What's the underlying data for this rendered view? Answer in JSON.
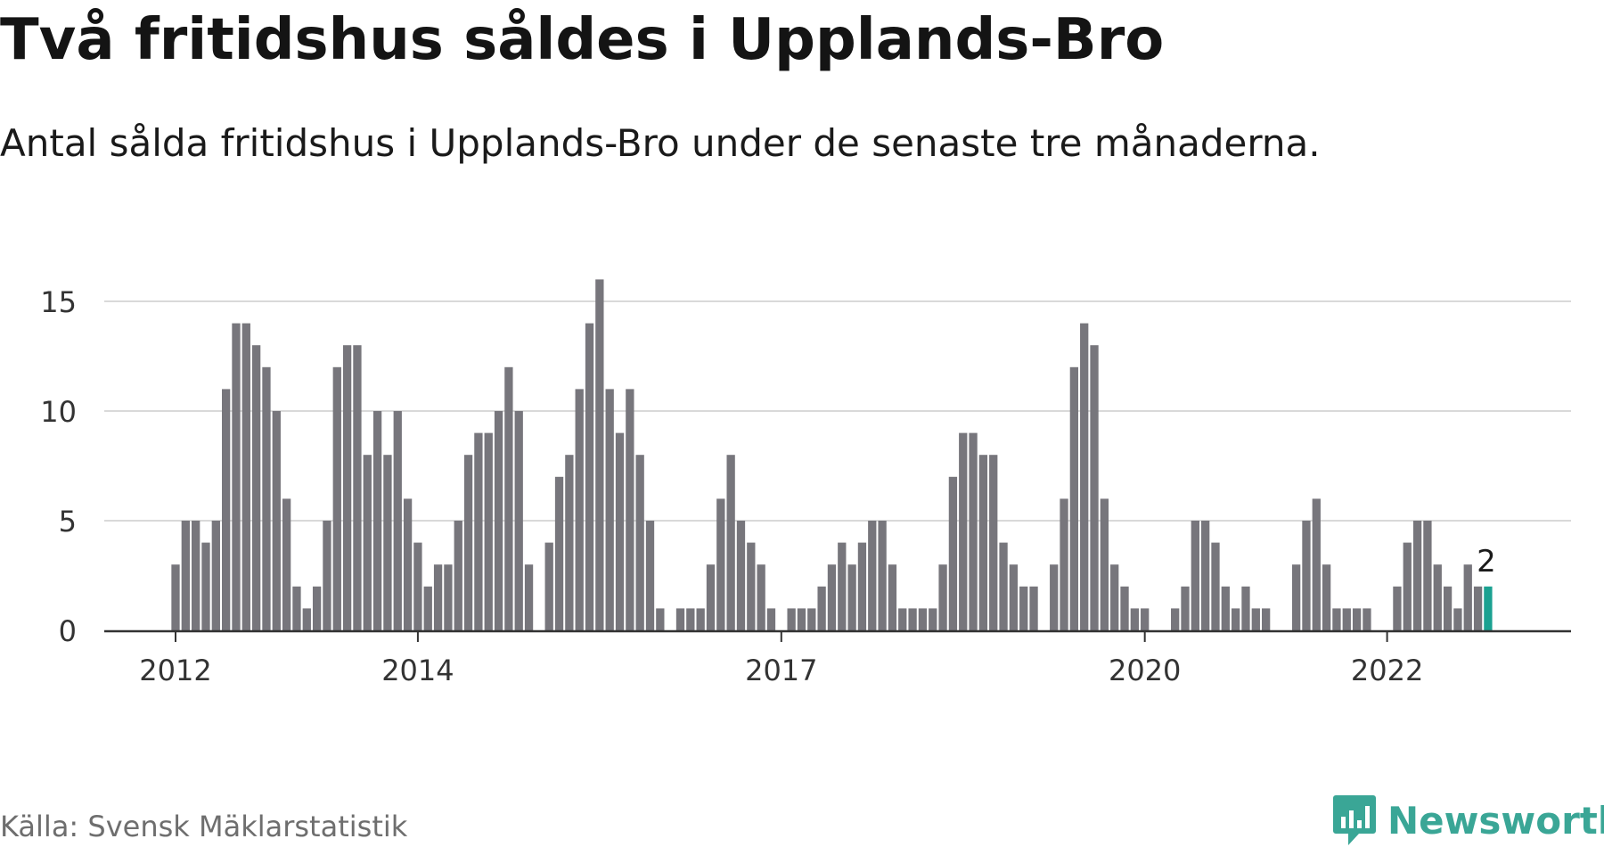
{
  "header": {
    "title": "Två fritidshus såldes i Upplands-Bro",
    "subtitle": "Antal sålda fritidshus i Upplands-Bro under de senaste tre månaderna."
  },
  "footer": {
    "source": "Källa: Svensk Mäklarstatistik",
    "brand": "Newsworthy",
    "brand_icon": "newsworthy-logo-icon"
  },
  "colors": {
    "bar": "#77767c",
    "highlight": "#1ba191",
    "grid": "#d9d9d9",
    "axis": "#333333",
    "brand": "#3aa696"
  },
  "chart_data": {
    "type": "bar",
    "title": "Två fritidshus såldes i Upplands-Bro",
    "subtitle": "Antal sålda fritidshus i Upplands-Bro under de senaste tre månaderna.",
    "xlabel": "",
    "ylabel": "",
    "ylim": [
      0,
      17
    ],
    "yticks": [
      0,
      5,
      10,
      15
    ],
    "grid": true,
    "legend": "none",
    "x_start": "2012-01",
    "x_ticks": [
      {
        "label": "2012",
        "month": "2012-01"
      },
      {
        "label": "2014",
        "month": "2014-01"
      },
      {
        "label": "2017",
        "month": "2017-01"
      },
      {
        "label": "2020",
        "month": "2020-01"
      },
      {
        "label": "2022",
        "month": "2022-01"
      }
    ],
    "values": [
      3,
      5,
      5,
      4,
      5,
      11,
      14,
      14,
      13,
      12,
      10,
      6,
      2,
      1,
      2,
      5,
      12,
      13,
      13,
      8,
      10,
      8,
      10,
      6,
      4,
      2,
      3,
      3,
      5,
      8,
      9,
      9,
      10,
      12,
      10,
      3,
      0,
      4,
      7,
      8,
      11,
      14,
      16,
      11,
      9,
      11,
      8,
      5,
      1,
      0,
      1,
      1,
      1,
      3,
      6,
      8,
      5,
      4,
      3,
      1,
      0,
      1,
      1,
      1,
      2,
      3,
      4,
      3,
      4,
      5,
      5,
      3,
      1,
      1,
      1,
      1,
      3,
      7,
      9,
      9,
      8,
      8,
      4,
      3,
      2,
      2,
      0,
      3,
      6,
      12,
      14,
      13,
      6,
      3,
      2,
      1,
      1,
      0,
      0,
      1,
      2,
      5,
      5,
      4,
      2,
      1,
      2,
      1,
      1,
      0,
      0,
      3,
      5,
      6,
      3,
      1,
      1,
      1,
      1,
      0,
      0,
      2,
      4,
      5,
      5,
      3,
      2,
      1,
      3,
      2,
      2
    ],
    "highlight_index": 130,
    "highlight_label": "2"
  }
}
